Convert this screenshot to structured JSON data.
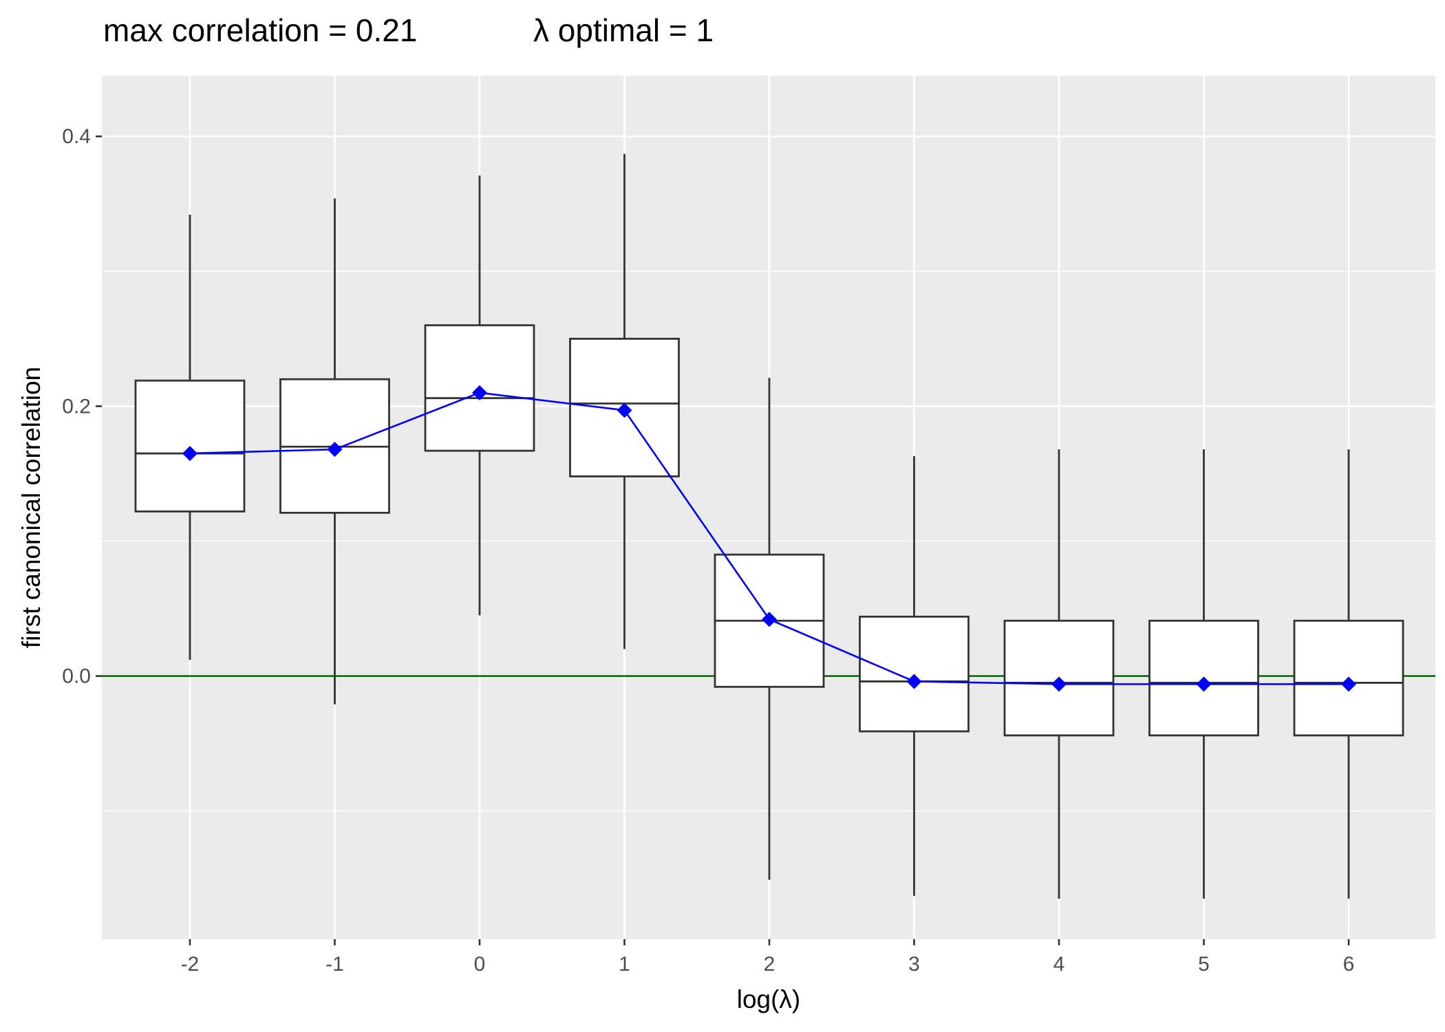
{
  "title": {
    "max_label": "max correlation = 0.21",
    "lambda_label": "λ optimal = 1"
  },
  "colors": {
    "panel_background": "#EBEBEB",
    "grid": "#FFFFFF",
    "box_outline": "#333333",
    "box_fill": "#FFFFFF",
    "mean_line": "#0000FF",
    "zero_line": "#006400"
  },
  "chart_data": {
    "type": "box",
    "title": "max correlation = 0.21     λ optimal = 1",
    "xlabel": "log(λ)",
    "ylabel": "first canonical correlation",
    "categories": [
      "-2",
      "-1",
      "0",
      "1",
      "2",
      "3",
      "4",
      "5",
      "6"
    ],
    "ylim": [
      -0.195,
      0.445
    ],
    "y_ticks": [
      0.0,
      0.2,
      0.4
    ],
    "y_tick_labels": [
      "0.0",
      "0.2",
      "0.4"
    ],
    "grid": true,
    "reference_line": {
      "y": 0.0,
      "color": "#006400"
    },
    "boxes": [
      {
        "x": "-2",
        "whisker_low": 0.012,
        "q1": 0.122,
        "median": 0.165,
        "q3": 0.219,
        "whisker_high": 0.342
      },
      {
        "x": "-1",
        "whisker_low": -0.021,
        "q1": 0.121,
        "median": 0.17,
        "q3": 0.22,
        "whisker_high": 0.354
      },
      {
        "x": "0",
        "whisker_low": 0.045,
        "q1": 0.167,
        "median": 0.206,
        "q3": 0.26,
        "whisker_high": 0.371
      },
      {
        "x": "1",
        "whisker_low": 0.02,
        "q1": 0.148,
        "median": 0.202,
        "q3": 0.25,
        "whisker_high": 0.387
      },
      {
        "x": "2",
        "whisker_low": -0.151,
        "q1": -0.008,
        "median": 0.041,
        "q3": 0.09,
        "whisker_high": 0.221
      },
      {
        "x": "3",
        "whisker_low": -0.163,
        "q1": -0.041,
        "median": -0.004,
        "q3": 0.044,
        "whisker_high": 0.163
      },
      {
        "x": "4",
        "whisker_low": -0.165,
        "q1": -0.044,
        "median": -0.005,
        "q3": 0.041,
        "whisker_high": 0.168
      },
      {
        "x": "5",
        "whisker_low": -0.165,
        "q1": -0.044,
        "median": -0.005,
        "q3": 0.041,
        "whisker_high": 0.168
      },
      {
        "x": "6",
        "whisker_low": -0.165,
        "q1": -0.044,
        "median": -0.005,
        "q3": 0.041,
        "whisker_high": 0.168
      }
    ],
    "series": [
      {
        "values": [
          0.165,
          0.168,
          0.21,
          0.197,
          0.042,
          -0.004,
          -0.006,
          -0.006,
          -0.006
        ]
      }
    ]
  }
}
